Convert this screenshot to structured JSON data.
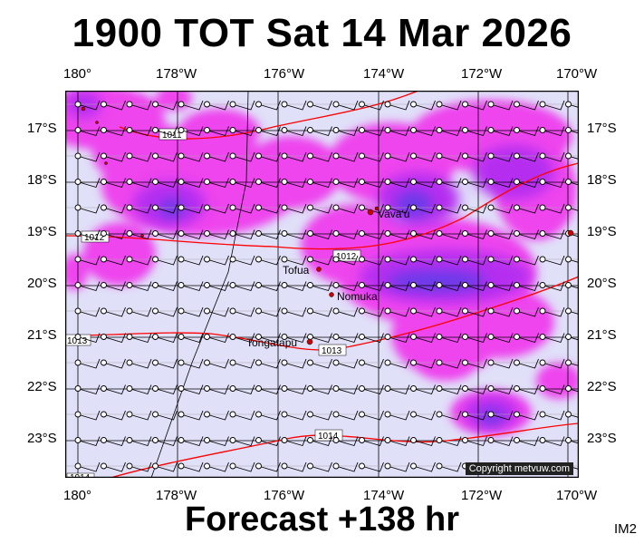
{
  "title": "1900 TOT Sat 14 Mar 2026",
  "subtitle": "Forecast +138 hr",
  "corner_label": "IM2",
  "copyright": "Copyright metvuw.com",
  "longitude_labels": [
    "180°",
    "178°W",
    "176°W",
    "174°W",
    "172°W",
    "170°W"
  ],
  "latitude_labels": [
    "17°S",
    "18°S",
    "19°S",
    "20°S",
    "21°S",
    "22°S",
    "23°S"
  ],
  "places": [
    {
      "name": "Vava'u",
      "lon": -173.95,
      "lat": -18.65
    },
    {
      "name": "Tofua",
      "lon": -175.05,
      "lat": -19.75
    },
    {
      "name": "Nomuka",
      "lon": -174.8,
      "lat": -20.25
    },
    {
      "name": "Tongatapu",
      "lon": -175.2,
      "lat": -21.15
    }
  ],
  "isobars": [
    {
      "label": "1011",
      "pressure_hpa": 1011
    },
    {
      "label": "1012",
      "pressure_hpa": 1012
    },
    {
      "label": "1012",
      "pressure_hpa": 1012
    },
    {
      "label": "1013",
      "pressure_hpa": 1013
    },
    {
      "label": "1013",
      "pressure_hpa": 1013
    },
    {
      "label": "1014",
      "pressure_hpa": 1014
    },
    {
      "label": "1014",
      "pressure_hpa": 1014
    }
  ],
  "colors": {
    "background": "#e0e0f8",
    "rain_light": "#ee44ee",
    "rain_medium": "#c022f0",
    "rain_heavy": "#6a3ae8",
    "isobar": "#ff0000",
    "land": "#cc0000"
  }
}
